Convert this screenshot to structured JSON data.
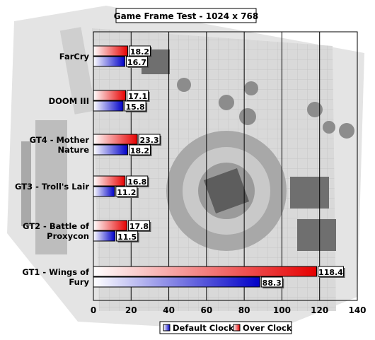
{
  "chart_data": {
    "type": "bar",
    "orientation": "horizontal",
    "title": "Game Frame Test - 1024 x 768",
    "categories": [
      "FarCry",
      "DOOM III",
      "GT4 - Mother Nature",
      "GT3 - Troll's Lair",
      "GT2 - Battle of Proxycon",
      "GT1 - Wings of Fury"
    ],
    "category_lines": [
      [
        "FarCry"
      ],
      [
        "DOOM III"
      ],
      [
        "GT4 - Mother",
        "Nature"
      ],
      [
        "GT3 - Troll's Lair"
      ],
      [
        "GT2 - Battle of",
        "Proxycon"
      ],
      [
        "GT1 - Wings of",
        "Fury"
      ]
    ],
    "series": [
      {
        "name": "Over Clock",
        "values": [
          18.2,
          17.1,
          23.3,
          16.8,
          17.8,
          118.4
        ],
        "color": "#e60000"
      },
      {
        "name": "Default Clock",
        "values": [
          16.7,
          15.8,
          18.2,
          11.2,
          11.5,
          88.3
        ],
        "color": "#0000c8"
      }
    ],
    "value_labels": {
      "Over Clock": [
        "18.2",
        "17.1",
        "23.3",
        "16.8",
        "17.8",
        "118.4"
      ],
      "Default Clock": [
        "16.7",
        "15.8",
        "18.2",
        "11.2",
        "11.5",
        "88.3"
      ]
    },
    "xlim": [
      0,
      140
    ],
    "xticks": [
      0,
      20,
      40,
      60,
      80,
      100,
      120,
      140
    ],
    "grid": true,
    "legend": {
      "position": "bottom",
      "order": [
        "Default Clock",
        "Over Clock"
      ]
    },
    "background": "grayscale photo of a graphics card behind the plot area"
  }
}
